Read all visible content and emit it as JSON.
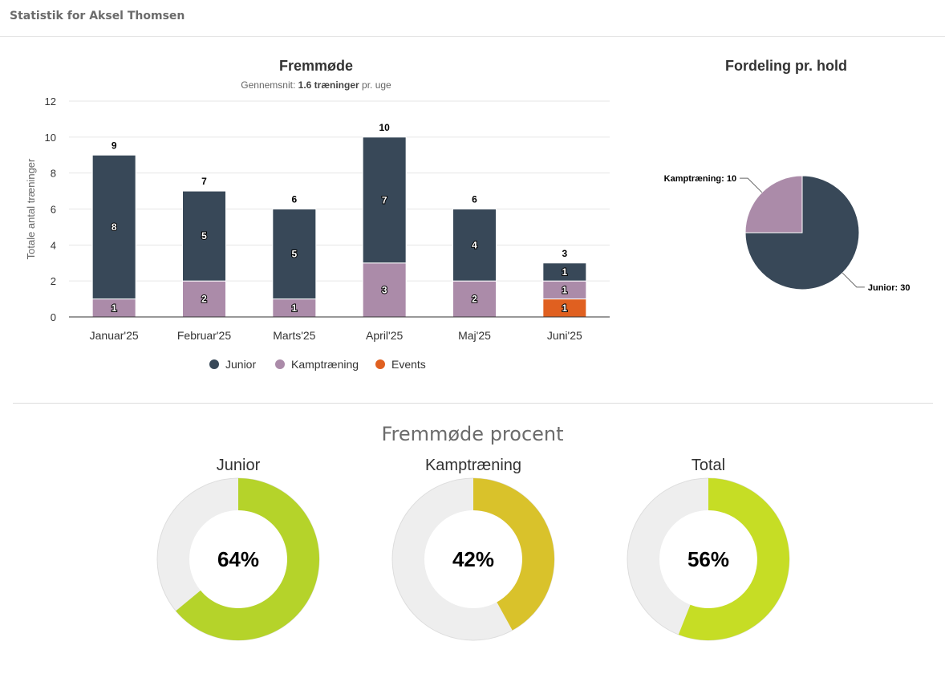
{
  "header": {
    "title": "Statistik for Aksel Thomsen"
  },
  "chart_data": [
    {
      "type": "bar",
      "stacked": true,
      "title": "Fremmøde",
      "subtitle_prefix": "Gennemsnit: ",
      "subtitle_bold": "1.6 træninger",
      "subtitle_suffix": " pr. uge",
      "xlabel": "",
      "ylabel": "Totale antal træninger",
      "ylim": [
        0,
        12
      ],
      "yticks": [
        0,
        2,
        4,
        6,
        8,
        10,
        12
      ],
      "grid": true,
      "legend_position": "bottom",
      "categories": [
        "Januar'25",
        "Februar'25",
        "Marts'25",
        "April'25",
        "Maj'25",
        "Juni'25"
      ],
      "totals": [
        9,
        7,
        6,
        10,
        6,
        3
      ],
      "series": [
        {
          "name": "Junior",
          "color": "#384858",
          "values": [
            8,
            5,
            5,
            7,
            4,
            1
          ]
        },
        {
          "name": "Kamptræning",
          "color": "#ab8ba9",
          "values": [
            1,
            2,
            1,
            3,
            2,
            1
          ]
        },
        {
          "name": "Events",
          "color": "#e06020",
          "values": [
            0,
            0,
            0,
            0,
            0,
            1
          ]
        }
      ]
    },
    {
      "type": "pie",
      "title": "Fordeling pr. hold",
      "slices": [
        {
          "label": "Kamptræning: 10",
          "name": "Kamptræning",
          "value": 10,
          "color": "#ab8ba9"
        },
        {
          "label": "Junior: 30",
          "name": "Junior",
          "value": 30,
          "color": "#384858"
        }
      ]
    }
  ],
  "attendance": {
    "title": "Fremmøde procent",
    "gauges": [
      {
        "name": "Junior",
        "label": "64%",
        "value": 64,
        "color": "#b5d32a"
      },
      {
        "name": "Kamptræning",
        "label": "42%",
        "value": 42,
        "color": "#d9c22b"
      },
      {
        "name": "Total",
        "label": "56%",
        "value": 56,
        "color": "#c6dd25"
      }
    ],
    "track_color": "#eeeeee"
  }
}
